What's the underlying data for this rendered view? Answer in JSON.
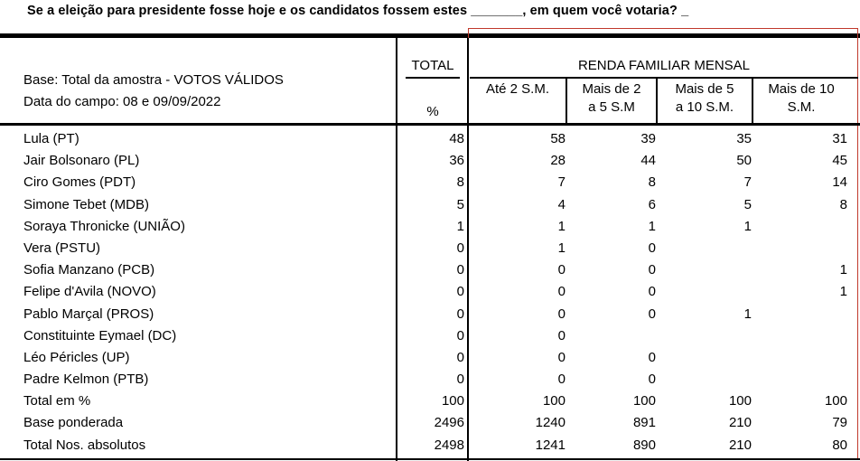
{
  "question": "Se a eleição para presidente fosse hoje e os candidatos fossem estes _______, em quem você votaria?",
  "question_tail": "_",
  "base_line1": "Base: Total da amostra - VOTOS VÁLIDOS",
  "base_line2": "Data do campo: 08 e 09/09/2022",
  "total_header": "TOTAL",
  "pct_label": "%",
  "group_header": "RENDA FAMILIAR MENSAL",
  "columns": [
    {
      "l1": "",
      "l2": "Até 2 S.M."
    },
    {
      "l1": "Mais de 2",
      "l2": "a 5 S.M"
    },
    {
      "l1": "Mais de 5",
      "l2": "a 10 S.M."
    },
    {
      "l1": "Mais de 10",
      "l2": "S.M."
    }
  ],
  "rows": [
    {
      "label": "Lula (PT)",
      "v": [
        "48",
        "58",
        "39",
        "35",
        "31"
      ]
    },
    {
      "label": "Jair Bolsonaro (PL)",
      "v": [
        "36",
        "28",
        "44",
        "50",
        "45"
      ]
    },
    {
      "label": "Ciro Gomes (PDT)",
      "v": [
        "8",
        "7",
        "8",
        "7",
        "14"
      ]
    },
    {
      "label": "Simone Tebet (MDB)",
      "v": [
        "5",
        "4",
        "6",
        "5",
        "8"
      ]
    },
    {
      "label": "Soraya Thronicke (UNIÃO)",
      "v": [
        "1",
        "1",
        "1",
        "1",
        ""
      ]
    },
    {
      "label": "Vera (PSTU)",
      "v": [
        "0",
        "1",
        "0",
        "",
        ""
      ]
    },
    {
      "label": "Sofia Manzano (PCB)",
      "v": [
        "0",
        "0",
        "0",
        "",
        "1"
      ]
    },
    {
      "label": "Felipe d'Avila (NOVO)",
      "v": [
        "0",
        "0",
        "0",
        "",
        "1"
      ]
    },
    {
      "label": "Pablo Marçal (PROS)",
      "v": [
        "0",
        "0",
        "0",
        "1",
        ""
      ]
    },
    {
      "label": "Constituinte Eymael (DC)",
      "v": [
        "0",
        "0",
        "",
        "",
        ""
      ]
    },
    {
      "label": "Léo Péricles (UP)",
      "v": [
        "0",
        "0",
        "0",
        "",
        ""
      ]
    },
    {
      "label": "Padre Kelmon (PTB)",
      "v": [
        "0",
        "0",
        "0",
        "",
        ""
      ]
    },
    {
      "label": "Total em %",
      "v": [
        "100",
        "100",
        "100",
        "100",
        "100"
      ]
    },
    {
      "label": "Base ponderada",
      "v": [
        "2496",
        "1240",
        "891",
        "210",
        "79"
      ]
    },
    {
      "label": "Total Nos. absolutos",
      "v": [
        "2498",
        "1241",
        "890",
        "210",
        "80"
      ]
    }
  ]
}
